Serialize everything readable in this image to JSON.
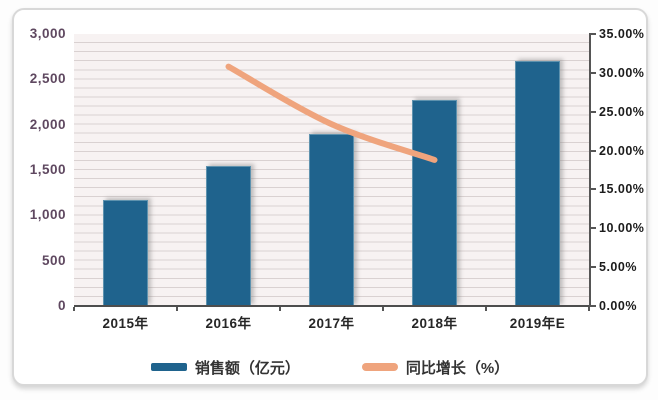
{
  "chart_data": {
    "type": "combo-bar-line",
    "title": "",
    "categories": [
      "2015年",
      "2016年",
      "2017年",
      "2018年",
      "2019年E"
    ],
    "series": [
      {
        "name": "销售额（亿元）",
        "type": "bar",
        "axis": "left",
        "color": "#1f638d",
        "values": [
          1170,
          1550,
          1900,
          2270,
          2700
        ]
      },
      {
        "name": "同比增长（%）",
        "type": "line",
        "axis": "right",
        "color": "#efa47d",
        "values": [
          null,
          30.8,
          23.4,
          18.8,
          null
        ]
      }
    ],
    "left_axis": {
      "min": 0,
      "max": 3000,
      "tick_step": 500,
      "tick_labels": [
        "0",
        "500",
        "1,000",
        "1,500",
        "2,000",
        "2,500",
        "3,000"
      ],
      "minor_grid_step": 100
    },
    "right_axis": {
      "min": 0,
      "max": 35,
      "tick_step": 5,
      "tick_labels": [
        "0.00%",
        "5.00%",
        "10.00%",
        "15.00%",
        "20.00%",
        "25.00%",
        "30.00%",
        "35.00%"
      ]
    },
    "grid": true,
    "legend_position": "bottom"
  },
  "colors": {
    "bar": "#1f638d",
    "line": "#efa47d",
    "plot_bg": "#f7f2f2",
    "gridline": "#d9d1d1",
    "axis_line": "#4d4d4d",
    "left_label": "#5f4860",
    "right_label": "#1c1c1c",
    "x_label": "#262626",
    "card_bg": "#ffffff",
    "card_border": "#d8d8d8"
  }
}
